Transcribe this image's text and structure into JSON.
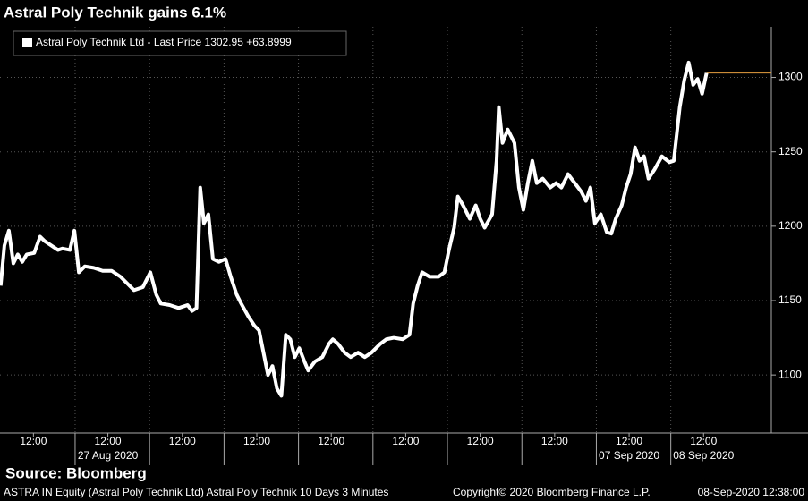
{
  "chart_data": {
    "type": "line",
    "title": "Astral Poly Technik gains 6.1%",
    "source": "Source: Bloomberg",
    "footer": {
      "left": "ASTRA IN Equity (Astral Poly Technik Ltd) Astral Poly Technik 10 Days 3 Minutes",
      "center": "Copyright© 2020 Bloomberg Finance L.P.",
      "right": "08-Sep-2020 12:38:00"
    },
    "series": [
      {
        "name": "Astral Poly Technik Ltd - Last Price 1302.95  +63.8999",
        "color": "#ffffff",
        "last_line_color": "#e8a040",
        "x": [
          0,
          0.05,
          0.11,
          0.17,
          0.23,
          0.29,
          0.35,
          0.45,
          0.53,
          0.59,
          0.68,
          0.77,
          0.83,
          0.93,
          0.99,
          1.05,
          1.13,
          1.25,
          1.37,
          1.49,
          1.61,
          1.73,
          1.79,
          1.91,
          2.01,
          2.09,
          2.15,
          2.27,
          2.39,
          2.51,
          2.57,
          2.63,
          2.68,
          2.73,
          2.79,
          2.85,
          2.93,
          3.02,
          3.09,
          3.17,
          3.23,
          3.33,
          3.41,
          3.47,
          3.53,
          3.59,
          3.65,
          3.71,
          3.77,
          3.83,
          3.89,
          3.95,
          4.01,
          4.08,
          4.13,
          4.22,
          4.32,
          4.41,
          4.46,
          4.53,
          4.62,
          4.7,
          4.8,
          4.89,
          4.98,
          5.1,
          5.18,
          5.28,
          5.4,
          5.49,
          5.54,
          5.6,
          5.66,
          5.76,
          5.88,
          5.96,
          6.02,
          6.09,
          6.14,
          6.21,
          6.3,
          6.38,
          6.44,
          6.5,
          6.6,
          6.66,
          6.69,
          6.74,
          6.81,
          6.9,
          6.96,
          7.02,
          7.08,
          7.14,
          7.2,
          7.28,
          7.38,
          7.46,
          7.53,
          7.62,
          7.71,
          7.8,
          7.86,
          7.92,
          7.98,
          8.06,
          8.14,
          8.2,
          8.26,
          8.34,
          8.4,
          8.46,
          8.52,
          8.58,
          8.64,
          8.7,
          8.78,
          8.88,
          8.98,
          9.04,
          9.08,
          9.12,
          9.18,
          9.24,
          9.3,
          9.36,
          9.42,
          9.48
        ],
        "values": [
          1160,
          1187,
          1197,
          1175,
          1181,
          1176,
          1181,
          1182,
          1193,
          1190,
          1187,
          1184,
          1185,
          1184,
          1197,
          1169,
          1173,
          1172,
          1170,
          1170,
          1166,
          1160,
          1157,
          1159,
          1169,
          1154,
          1148,
          1147,
          1145,
          1147,
          1143,
          1145,
          1226,
          1202,
          1208,
          1178,
          1176,
          1178,
          1166,
          1154,
          1148,
          1139,
          1133,
          1130,
          1115,
          1100,
          1106,
          1091,
          1086,
          1127,
          1124,
          1112,
          1118,
          1109,
          1103,
          1109,
          1112,
          1121,
          1124,
          1121,
          1115,
          1112,
          1115,
          1112,
          1115,
          1121,
          1124,
          1125,
          1124,
          1127,
          1148,
          1160,
          1169,
          1166,
          1166,
          1169,
          1184,
          1199,
          1220,
          1214,
          1205,
          1214,
          1205,
          1199,
          1208,
          1244,
          1280,
          1256,
          1265,
          1256,
          1226,
          1211,
          1229,
          1244,
          1229,
          1232,
          1226,
          1229,
          1226,
          1235,
          1229,
          1223,
          1217,
          1226,
          1202,
          1208,
          1196,
          1195,
          1205,
          1214,
          1226,
          1235,
          1253,
          1244,
          1247,
          1232,
          1238,
          1247,
          1243,
          1244,
          1262,
          1280,
          1298,
          1310,
          1295,
          1299,
          1289,
          1302.95
        ]
      }
    ],
    "xlim": [
      0,
      10.35
    ],
    "xticks": [
      {
        "value": 0.44,
        "label": "12:00"
      },
      {
        "value": 1.44,
        "label": "12:00"
      },
      {
        "value": 2.44,
        "label": "12:00"
      },
      {
        "value": 3.44,
        "label": "12:00"
      },
      {
        "value": 4.44,
        "label": "12:00"
      },
      {
        "value": 5.44,
        "label": "12:00"
      },
      {
        "value": 6.44,
        "label": "12:00"
      },
      {
        "value": 7.44,
        "label": "12:00"
      },
      {
        "value": 8.44,
        "label": "12:00"
      },
      {
        "value": 9.44,
        "label": "12:00"
      }
    ],
    "x_date_labels": [
      {
        "value": 1.44,
        "label": "27 Aug 2020"
      },
      {
        "value": 8.44,
        "label": "07 Sep 2020"
      },
      {
        "value": 9.44,
        "label": "08 Sep 2020"
      }
    ],
    "x_day_separators": [
      1,
      2,
      3,
      4,
      5,
      6,
      7,
      8,
      9
    ],
    "ylim": [
      1061,
      1334
    ],
    "yticks": [
      1100,
      1150,
      1200,
      1250,
      1300
    ],
    "grid": true
  }
}
